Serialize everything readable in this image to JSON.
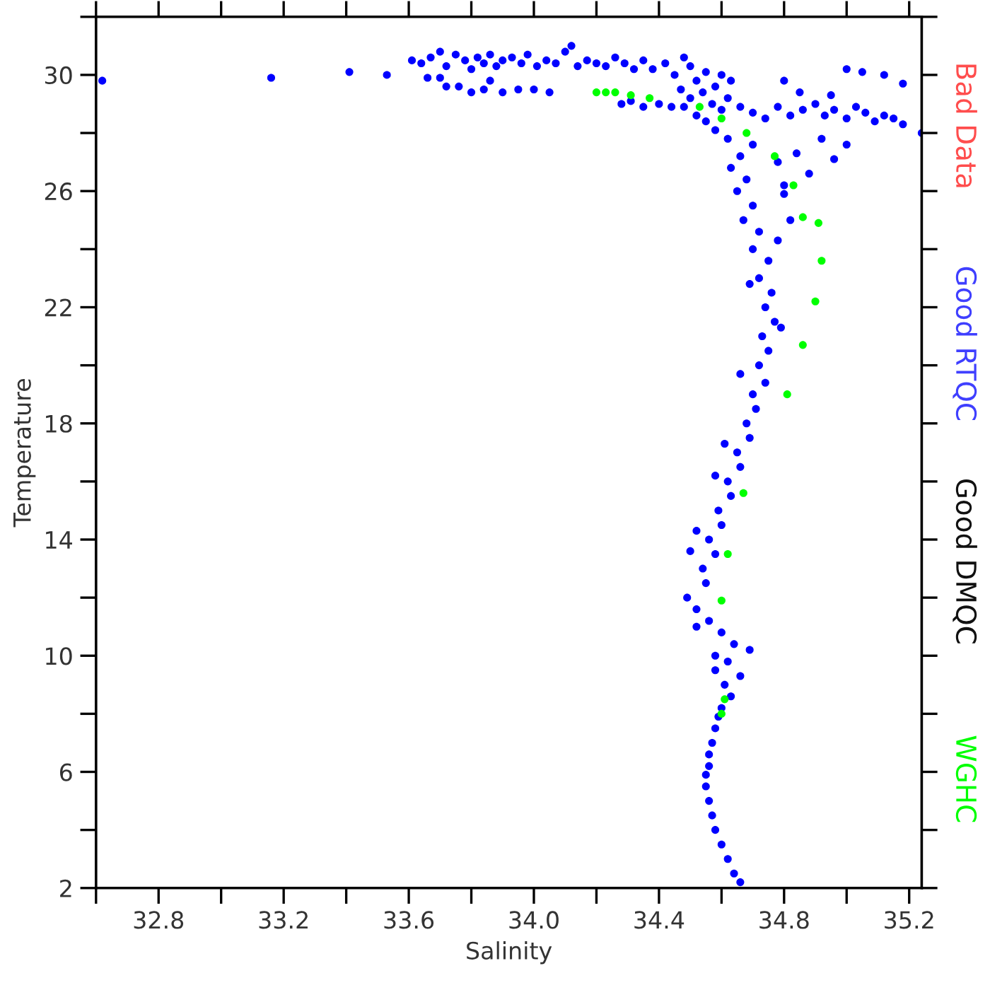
{
  "chart_data": {
    "type": "scatter",
    "xlabel": "Salinity",
    "ylabel": "Temperature",
    "xlim": [
      32.6,
      35.24
    ],
    "ylim": [
      2,
      32
    ],
    "xticks": [
      {
        "value": 32.6,
        "label": null
      },
      32.8,
      {
        "value": 33.0,
        "label": null
      },
      33.2,
      {
        "value": 33.4,
        "label": null
      },
      33.6,
      {
        "value": 33.8,
        "label": null
      },
      {
        "value": 34.0,
        "label": "34.0"
      },
      {
        "value": 34.2,
        "label": null
      },
      34.4,
      {
        "value": 34.6,
        "label": null
      },
      34.8,
      {
        "value": 35.0,
        "label": null
      },
      35.2
    ],
    "yticks": [
      2,
      {
        "value": 4,
        "label": null
      },
      6,
      {
        "value": 8,
        "label": null
      },
      10,
      {
        "value": 12,
        "label": null
      },
      14,
      {
        "value": 16,
        "label": null
      },
      18,
      {
        "value": 20,
        "label": null
      },
      22,
      {
        "value": 24,
        "label": null
      },
      26,
      {
        "value": 28,
        "label": null
      },
      30,
      {
        "value": 32,
        "label": null
      }
    ],
    "grid": false,
    "legend": "right",
    "marker": "circle",
    "annotations": [
      "Bad Data",
      "Good DMQC"
    ],
    "series": [
      {
        "name": "Good RTQC",
        "color": "#0000ff",
        "x": [
          32.62,
          33.16,
          33.41,
          33.53,
          33.61,
          33.64,
          33.67,
          33.7,
          33.72,
          33.75,
          33.78,
          33.8,
          33.82,
          33.84,
          33.86,
          33.88,
          33.9,
          33.93,
          33.96,
          33.98,
          34.01,
          34.04,
          34.07,
          34.1,
          34.12,
          34.14,
          34.17,
          34.2,
          34.23,
          34.26,
          34.29,
          34.32,
          34.35,
          33.72,
          33.76,
          33.8,
          33.84,
          33.9,
          33.95,
          34.0,
          34.05,
          33.66,
          33.7,
          33.86,
          34.38,
          34.42,
          34.45,
          34.48,
          34.5,
          34.52,
          34.55,
          34.58,
          34.6,
          34.63,
          34.47,
          34.5,
          34.54,
          34.57,
          34.6,
          34.62,
          34.28,
          34.31,
          34.35,
          34.4,
          34.44,
          34.48,
          34.52,
          34.55,
          34.58,
          34.62,
          34.66,
          34.7,
          34.74,
          34.78,
          34.82,
          34.86,
          34.9,
          34.93,
          34.96,
          35.0,
          35.03,
          35.06,
          35.09,
          35.12,
          35.15,
          35.18,
          35.24,
          34.85,
          34.95,
          35.05,
          35.12,
          34.8,
          35.0,
          35.18,
          34.7,
          34.78,
          34.84,
          34.92,
          35.0,
          34.88,
          34.96,
          34.8,
          34.66,
          34.63,
          34.68,
          34.65,
          34.7,
          34.67,
          34.72,
          34.7,
          34.75,
          34.72,
          34.76,
          34.74,
          34.77,
          34.73,
          34.75,
          34.72,
          34.74,
          34.7,
          34.71,
          34.68,
          34.69,
          34.65,
          34.66,
          34.62,
          34.63,
          34.59,
          34.6,
          34.56,
          34.58,
          34.54,
          34.55,
          34.49,
          34.52,
          34.56,
          34.6,
          34.64,
          34.69,
          34.62,
          34.58,
          34.66,
          34.61,
          34.63,
          34.6,
          34.59,
          34.58,
          34.57,
          34.56,
          34.56,
          34.55,
          34.55,
          34.56,
          34.57,
          34.58,
          34.6,
          34.62,
          34.64,
          34.66,
          34.8,
          34.82,
          34.78,
          34.69,
          34.79,
          34.66,
          34.61,
          34.58,
          34.52,
          34.5,
          34.58,
          34.52
        ],
        "values": [
          29.8,
          29.9,
          30.1,
          30.0,
          30.5,
          30.4,
          30.6,
          30.8,
          30.3,
          30.7,
          30.5,
          30.2,
          30.6,
          30.4,
          30.7,
          30.3,
          30.5,
          30.6,
          30.4,
          30.7,
          30.3,
          30.5,
          30.4,
          30.8,
          31.0,
          30.3,
          30.5,
          30.4,
          30.3,
          30.6,
          30.4,
          30.2,
          30.5,
          29.6,
          29.6,
          29.4,
          29.5,
          29.4,
          29.5,
          29.5,
          29.4,
          29.9,
          29.9,
          29.8,
          30.2,
          30.4,
          30.0,
          30.6,
          30.3,
          29.8,
          30.1,
          29.6,
          30.0,
          29.8,
          29.5,
          29.2,
          29.4,
          29.0,
          28.8,
          29.2,
          29.0,
          29.1,
          28.9,
          29.0,
          28.9,
          28.9,
          28.6,
          28.4,
          28.1,
          27.8,
          28.9,
          28.7,
          28.5,
          28.9,
          28.6,
          28.8,
          29.0,
          28.6,
          28.8,
          28.5,
          28.9,
          28.7,
          28.4,
          28.6,
          28.5,
          28.3,
          28.0,
          29.4,
          29.3,
          30.1,
          30.0,
          29.8,
          30.2,
          29.7,
          27.6,
          27.0,
          27.3,
          27.8,
          27.6,
          26.6,
          27.1,
          26.2,
          27.2,
          26.8,
          26.4,
          26.0,
          25.5,
          25.0,
          24.6,
          24.0,
          23.6,
          23.0,
          22.5,
          22.0,
          21.5,
          21.0,
          20.5,
          20.0,
          19.4,
          19.0,
          18.5,
          18.0,
          17.5,
          17.0,
          16.5,
          16.0,
          15.5,
          15.0,
          14.5,
          14.0,
          13.5,
          13.0,
          12.5,
          12.0,
          11.6,
          11.2,
          10.8,
          10.4,
          10.2,
          9.8,
          9.5,
          9.3,
          9.0,
          8.6,
          8.2,
          7.9,
          7.5,
          7.0,
          6.6,
          6.2,
          5.9,
          5.5,
          5.0,
          4.5,
          4.0,
          3.5,
          3.0,
          2.5,
          2.2,
          25.9,
          25.0,
          24.3,
          22.8,
          21.3,
          19.7,
          17.3,
          16.2,
          14.3,
          13.6,
          10.0,
          11.0
        ]
      },
      {
        "name": "WGHC",
        "color": "#00ff00",
        "x": [
          34.2,
          34.23,
          34.26,
          34.31,
          34.37,
          34.53,
          34.6,
          34.68,
          34.77,
          34.83,
          34.86,
          34.91,
          34.92,
          34.9,
          34.86,
          34.81,
          34.67,
          34.62,
          34.6,
          34.61,
          34.6
        ],
        "values": [
          29.4,
          29.4,
          29.4,
          29.3,
          29.2,
          28.9,
          28.5,
          28.0,
          27.2,
          26.2,
          25.1,
          24.9,
          23.6,
          22.2,
          20.7,
          19.0,
          15.6,
          13.5,
          11.9,
          8.5,
          8.0
        ]
      }
    ]
  }
}
